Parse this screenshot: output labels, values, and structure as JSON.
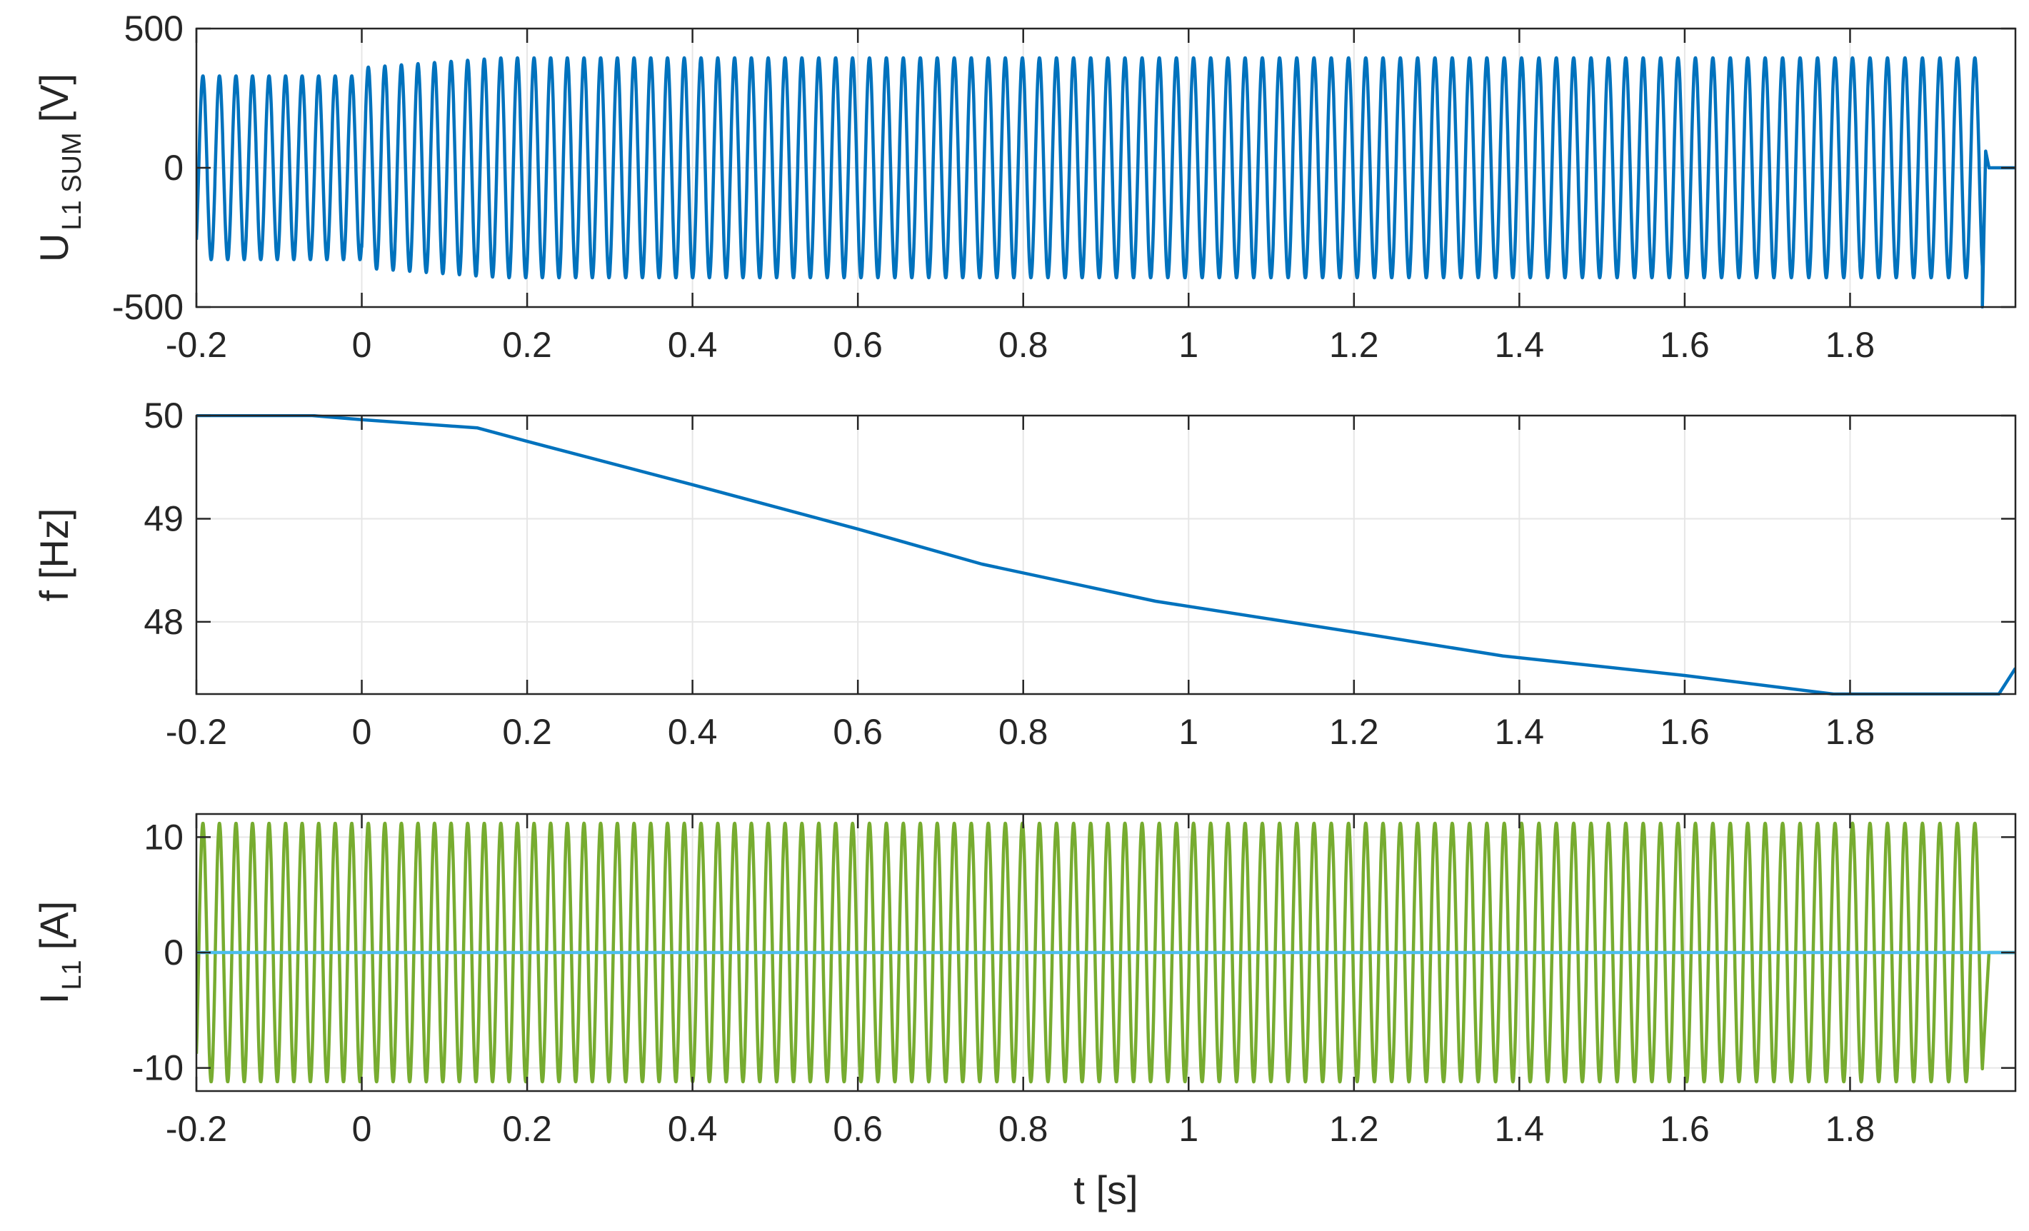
{
  "chart_data": [
    {
      "type": "line",
      "ylabel_main": "U",
      "ylabel_sub": "L1 SUM",
      "ylabel_unit": "[V]",
      "xlim": [
        -0.2,
        2.0
      ],
      "ylim": [
        -500,
        500
      ],
      "yticks": [
        -500,
        0,
        500
      ],
      "xticks": [
        -0.2,
        0,
        0.2,
        0.4,
        0.6,
        0.8,
        1,
        1.2,
        1.4,
        1.6,
        1.8
      ],
      "grid": true,
      "series": [
        {
          "color": "#0072bd",
          "kind": "sinusoid",
          "segments": [
            {
              "t0": -0.2,
              "t1": 0.0,
              "amplitude": 330,
              "frequency_hz": 50
            },
            {
              "t0": 0.0,
              "t1": 0.17,
              "amplitude_start": 360,
              "amplitude_end": 395,
              "frequency_hz": "from frequency panel"
            },
            {
              "t0": 0.17,
              "t1": 1.96,
              "amplitude": 395,
              "frequency_hz": "from frequency panel"
            }
          ],
          "after_trip": {
            "t": 1.96,
            "spike_min": -500,
            "value": 0
          }
        }
      ]
    },
    {
      "type": "line",
      "ylabel": "f [Hz]",
      "xlim": [
        -0.2,
        2.0
      ],
      "ylim": [
        47.3,
        50
      ],
      "yticks": [
        48,
        49,
        50
      ],
      "xticks": [
        -0.2,
        0,
        0.2,
        0.4,
        0.6,
        0.8,
        1,
        1.2,
        1.4,
        1.6,
        1.8
      ],
      "grid": true,
      "series": [
        {
          "color": "#0072bd",
          "x": [
            -0.2,
            -0.06,
            0.0,
            0.14,
            0.2,
            0.4,
            0.6,
            0.75,
            0.96,
            1.2,
            1.38,
            1.6,
            1.78,
            1.98,
            2.0
          ],
          "y": [
            50.0,
            50.0,
            49.96,
            49.88,
            49.75,
            49.33,
            48.9,
            48.56,
            48.2,
            47.9,
            47.67,
            47.48,
            47.3,
            47.3,
            47.55
          ]
        }
      ]
    },
    {
      "type": "line",
      "ylabel_main": "I",
      "ylabel_sub": "L1",
      "ylabel_unit": "[A]",
      "xlabel": "t [s]",
      "xlim": [
        -0.2,
        2.0
      ],
      "ylim": [
        -12,
        12
      ],
      "yticks": [
        -10,
        0,
        10
      ],
      "xticks": [
        -0.2,
        0,
        0.2,
        0.4,
        0.6,
        0.8,
        1,
        1.2,
        1.4,
        1.6,
        1.8
      ],
      "grid": true,
      "series": [
        {
          "color": "#77ac30",
          "kind": "sinusoid",
          "amplitude": 11.2,
          "t0": -0.2,
          "t1": 1.96,
          "frequency_hz": "from frequency panel",
          "after_trip": {
            "t": 1.96,
            "value": 0
          }
        },
        {
          "color": "#4dbeee",
          "kind": "constant",
          "value": 0,
          "t0": -0.2,
          "t1": 2.0
        }
      ]
    }
  ]
}
